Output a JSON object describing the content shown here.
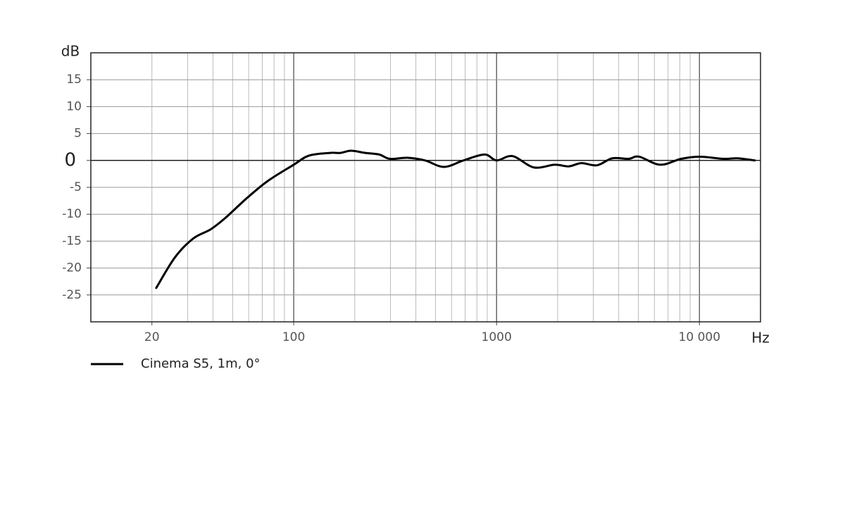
{
  "chart_data": {
    "type": "line",
    "y_label": "dB",
    "x_label": "Hz",
    "xlog": true,
    "xlim": [
      10,
      20000
    ],
    "ylim": [
      -30,
      20
    ],
    "xticks": [
      20,
      100,
      1000,
      {
        "value": 10000,
        "label": "10 000"
      }
    ],
    "yticks": [
      -25,
      -20,
      -15,
      -10,
      -5,
      0,
      5,
      10,
      15
    ],
    "xgrid": [
      20,
      30,
      40,
      50,
      60,
      70,
      80,
      90,
      100,
      200,
      300,
      400,
      500,
      600,
      700,
      800,
      900,
      1000,
      2000,
      3000,
      4000,
      5000,
      6000,
      7000,
      8000,
      9000,
      10000
    ],
    "xmajor": [
      100,
      1000,
      10000
    ],
    "grid": true,
    "series": [
      {
        "name": "Cinema S5, 1m, 0°",
        "color": "#000000",
        "x": [
          21,
          26,
          32,
          39,
          46,
          58,
          74,
          100,
          119,
          151,
          170,
          192,
          225,
          264,
          298,
          364,
          444,
          550,
          687,
          873,
          1000,
          1200,
          1525,
          1935,
          2270,
          2620,
          3130,
          3720,
          4480,
          5040,
          6400,
          8130,
          10000,
          13100,
          15400,
          18750
        ],
        "values": [
          -23.7,
          -18.0,
          -14.5,
          -12.8,
          -10.7,
          -7.2,
          -3.9,
          -0.8,
          0.9,
          1.4,
          1.4,
          1.8,
          1.4,
          1.1,
          0.3,
          0.5,
          0,
          -1.2,
          0,
          1.1,
          0,
          0.8,
          -1.3,
          -0.8,
          -1.1,
          -0.5,
          -0.9,
          0.4,
          0.3,
          0.7,
          -0.8,
          0.3,
          0.7,
          0.3,
          0.4,
          0
        ]
      }
    ]
  }
}
